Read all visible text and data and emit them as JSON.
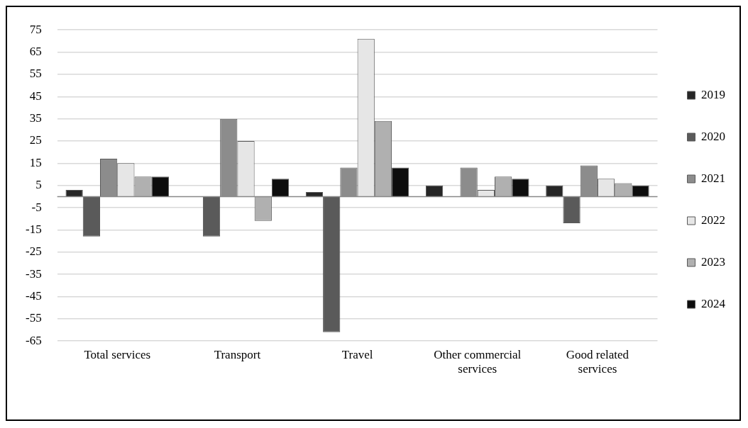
{
  "chart_data": {
    "type": "bar",
    "categories": [
      "Total services",
      "Transport",
      "Travel",
      "Other commercial services",
      "Good related services"
    ],
    "series": [
      {
        "name": "2019",
        "color": "#262626",
        "values": [
          3,
          0,
          2,
          5,
          5
        ]
      },
      {
        "name": "2020",
        "color": "#5a5a5a",
        "values": [
          -18,
          -18,
          -61,
          0,
          -12
        ]
      },
      {
        "name": "2021",
        "color": "#8c8c8c",
        "values": [
          17,
          35,
          13,
          13,
          14
        ]
      },
      {
        "name": "2022",
        "color": "#e6e6e6",
        "values": [
          15,
          25,
          71,
          3,
          8
        ]
      },
      {
        "name": "2023",
        "color": "#b0b0b0",
        "values": [
          9,
          -11,
          34,
          9,
          6
        ]
      },
      {
        "name": "2024",
        "color": "#0d0d0d",
        "values": [
          9,
          8,
          13,
          8,
          5
        ]
      }
    ],
    "ylim": [
      -65,
      75
    ],
    "yticks": [
      -65,
      -55,
      -45,
      -35,
      -25,
      -15,
      -5,
      5,
      15,
      25,
      35,
      45,
      55,
      65,
      75
    ],
    "grid": "y",
    "legend": "right"
  }
}
